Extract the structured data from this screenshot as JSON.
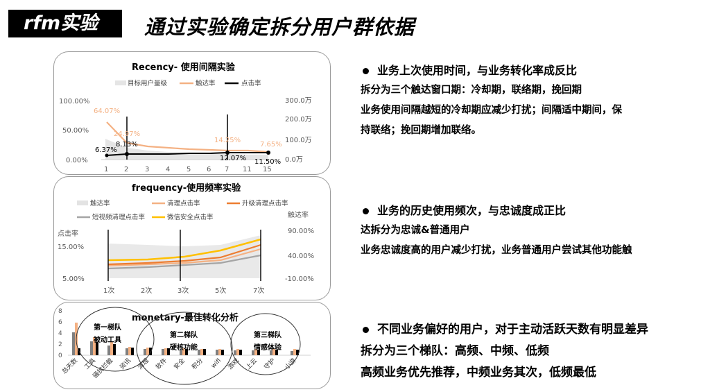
{
  "header": {
    "tag": "rfm实验",
    "title": "通过实验确定拆分用户群依据"
  },
  "recency": {
    "title": "Recency- 使用间隔实验",
    "legend": [
      "目标用户量级",
      "触达率",
      "点击率"
    ],
    "left_ticks": [
      "100.00%",
      "50.00%",
      "0.00%"
    ],
    "right_ticks": [
      "300.0万",
      "200.0万",
      "100.0万",
      "0.0万"
    ],
    "x_ticks": [
      "1",
      "2",
      "3",
      "4",
      "5",
      "6",
      "7",
      "11",
      "15"
    ],
    "reach_labels": [
      "64.07%",
      "24.97%",
      "14.25%",
      "7.65%"
    ],
    "click_labels": [
      "8.13%",
      "6.37%",
      "12.07%",
      "11.50%"
    ],
    "colors": {
      "reach": "#f4b183",
      "click": "#000000",
      "volume": "#e5e5e5"
    }
  },
  "frequency": {
    "title": "frequency-使用频率实验",
    "legend": [
      "触达率",
      "清理点击率",
      "升级清理点击率",
      "短视频清理点击率",
      "微信安全点击率"
    ],
    "left_axis_label": "点击率",
    "right_axis_label": "触达率",
    "left_ticks": [
      "15.00%",
      "5.00%"
    ],
    "right_ticks": [
      "90.00%",
      "40.00%",
      "-10.00%"
    ],
    "x_ticks": [
      "1次",
      "2次",
      "3次",
      "5次",
      "7次"
    ],
    "colors": {
      "area": "#e3e3e3",
      "clean": "#f4b183",
      "upgrade": "#ed7d31",
      "video": "#a5a5a5",
      "wechat": "#ffc000"
    }
  },
  "monetary": {
    "title": "monetary-最佳转化分析",
    "y_ticks": [
      "8",
      "6",
      "4",
      "2",
      "0"
    ],
    "categories": [
      "总天数",
      "工具",
      "骚扰拦截",
      "资讯",
      "清理",
      "软件",
      "安全",
      "积分",
      "wifi",
      "游戏",
      "上云",
      "守护",
      "小游"
    ],
    "groups": [
      {
        "name": "第一梯队",
        "desc": "被动工具"
      },
      {
        "name": "第二梯队",
        "desc": "硬核功能"
      },
      {
        "name": "第三梯队",
        "desc": "情感体验"
      }
    ]
  },
  "bullets": [
    {
      "head": "业务上次使用时间，与业务转化率成反比",
      "lines": [
        "拆分为三个触达窗口期：冷却期，联络期，挽回期",
        "业务使用间隔越短的冷却期应减少打扰；间隔适中期间，保",
        "持联络；挽回期增加联络。"
      ]
    },
    {
      "head": "业务的历史使用频次，与忠诚度成正比",
      "lines": [
        "达拆分为忠诚&普通用户",
        "业务忠诚度高的用户减少打扰，业务普通用户尝试其他功能触"
      ]
    },
    {
      "head": "不同业务偏好的用户，对于主动活跃天数有明显差异",
      "lines": [
        "拆分为三个梯队：高频、中频、低频",
        "高频业务优先推荐，中频业务其次，低频最低"
      ]
    }
  ]
}
